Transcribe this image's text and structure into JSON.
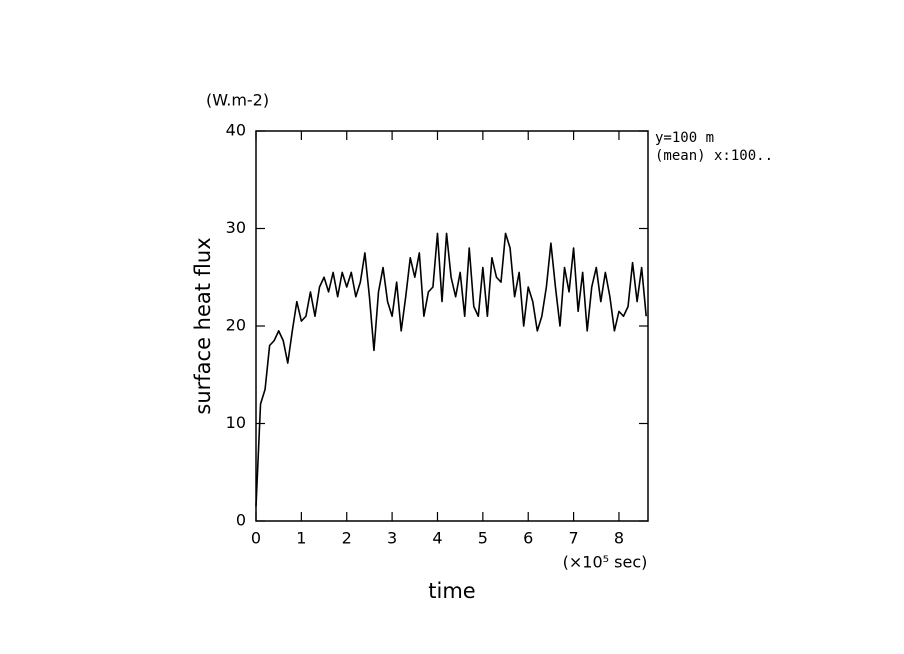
{
  "chart_data": {
    "type": "line",
    "y_unit": "(W.m-2)",
    "ylabel": "surface heat flux",
    "xlabel": "time",
    "x_unit": "(×10⁵ sec)",
    "annotations": [
      "y=100 m",
      "(mean) x:100.."
    ],
    "x": [
      0,
      0.1,
      0.2,
      0.3,
      0.4,
      0.5,
      0.6,
      0.7,
      0.8,
      0.9,
      1,
      1.1,
      1.2,
      1.3,
      1.4,
      1.5,
      1.6,
      1.7,
      1.8,
      1.9,
      2,
      2.1,
      2.2,
      2.3,
      2.4,
      2.5,
      2.6,
      2.7,
      2.8,
      2.9,
      3,
      3.1,
      3.2,
      3.3,
      3.4,
      3.5,
      3.6,
      3.7,
      3.8,
      3.9,
      4,
      4.1,
      4.2,
      4.3,
      4.4,
      4.5,
      4.6,
      4.7,
      4.8,
      4.9,
      5,
      5.1,
      5.2,
      5.3,
      5.4,
      5.5,
      5.6,
      5.7,
      5.8,
      5.9,
      6,
      6.1,
      6.2,
      6.3,
      6.4,
      6.5,
      6.6,
      6.7,
      6.8,
      6.9,
      7,
      7.1,
      7.2,
      7.3,
      7.4,
      7.5,
      7.6,
      7.7,
      7.8,
      7.9,
      8,
      8.1,
      8.2,
      8.3,
      8.4,
      8.5,
      8.6
    ],
    "series": [
      {
        "color": "#000000",
        "values": [
          1.5,
          12,
          13.5,
          18,
          18.5,
          19.5,
          18.5,
          16.2,
          19.5,
          22.5,
          20.5,
          21,
          23.5,
          21,
          24,
          25,
          23.5,
          25.5,
          23,
          25.5,
          24,
          25.5,
          23,
          24.5,
          27.5,
          23,
          17.5,
          23.5,
          26,
          22.5,
          21,
          24.5,
          19.5,
          23,
          27,
          25,
          27.5,
          21,
          23.5,
          24,
          29.5,
          22.5,
          29.5,
          25,
          23,
          25.5,
          21,
          28,
          22,
          21,
          26,
          21,
          27,
          25,
          24.5,
          29.5,
          28,
          23,
          25.5,
          20,
          24,
          22.5,
          19.5,
          21,
          24,
          28.5,
          24,
          20,
          26,
          23.5,
          28,
          21.5,
          25.5,
          19.5,
          24,
          26,
          22.5,
          25.5,
          23,
          19.5,
          21.5,
          21,
          22,
          26.5,
          22.5,
          26,
          21
        ]
      }
    ],
    "xlim": [
      0,
      8.64
    ],
    "ylim": [
      0,
      40
    ],
    "xticks": [
      0,
      1,
      2,
      3,
      4,
      5,
      6,
      7,
      8
    ],
    "yticks": [
      0,
      10,
      20,
      30,
      40
    ]
  }
}
